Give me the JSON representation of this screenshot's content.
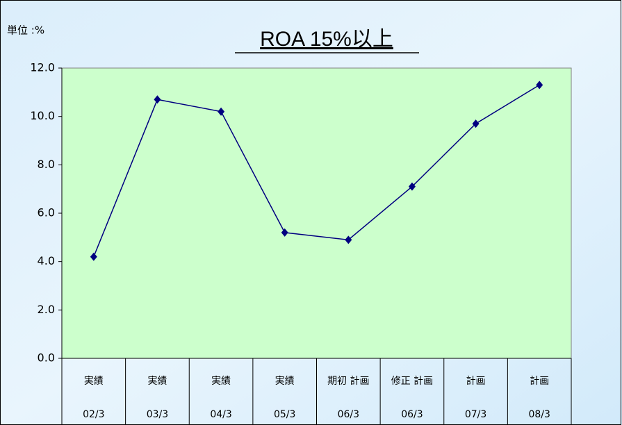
{
  "chart_data": {
    "type": "line",
    "title": "ROA 15%以上",
    "unit_label": "単位 :%",
    "category_groups": [
      "実績",
      "実績",
      "実績",
      "実績",
      "期初 計画",
      "修正 計画",
      "計画",
      "計画"
    ],
    "categories": [
      "02/3",
      "03/3",
      "04/3",
      "05/3",
      "06/3",
      "06/3",
      "07/3",
      "08/3"
    ],
    "series": [
      {
        "name": "ROA",
        "color": "#000080",
        "values": [
          4.2,
          10.7,
          10.2,
          5.2,
          4.9,
          7.1,
          9.7,
          11.3
        ]
      }
    ],
    "ylim": [
      0,
      12
    ],
    "yticks": [
      {
        "value": 0,
        "label": "0.0"
      },
      {
        "value": 2,
        "label": "2.0"
      },
      {
        "value": 4,
        "label": "4.0"
      },
      {
        "value": 6,
        "label": "6.0"
      },
      {
        "value": 8,
        "label": "8.0"
      },
      {
        "value": 10,
        "label": "10.0"
      },
      {
        "value": 12,
        "label": "12.0"
      }
    ],
    "plot_color": "#ccffcc"
  }
}
